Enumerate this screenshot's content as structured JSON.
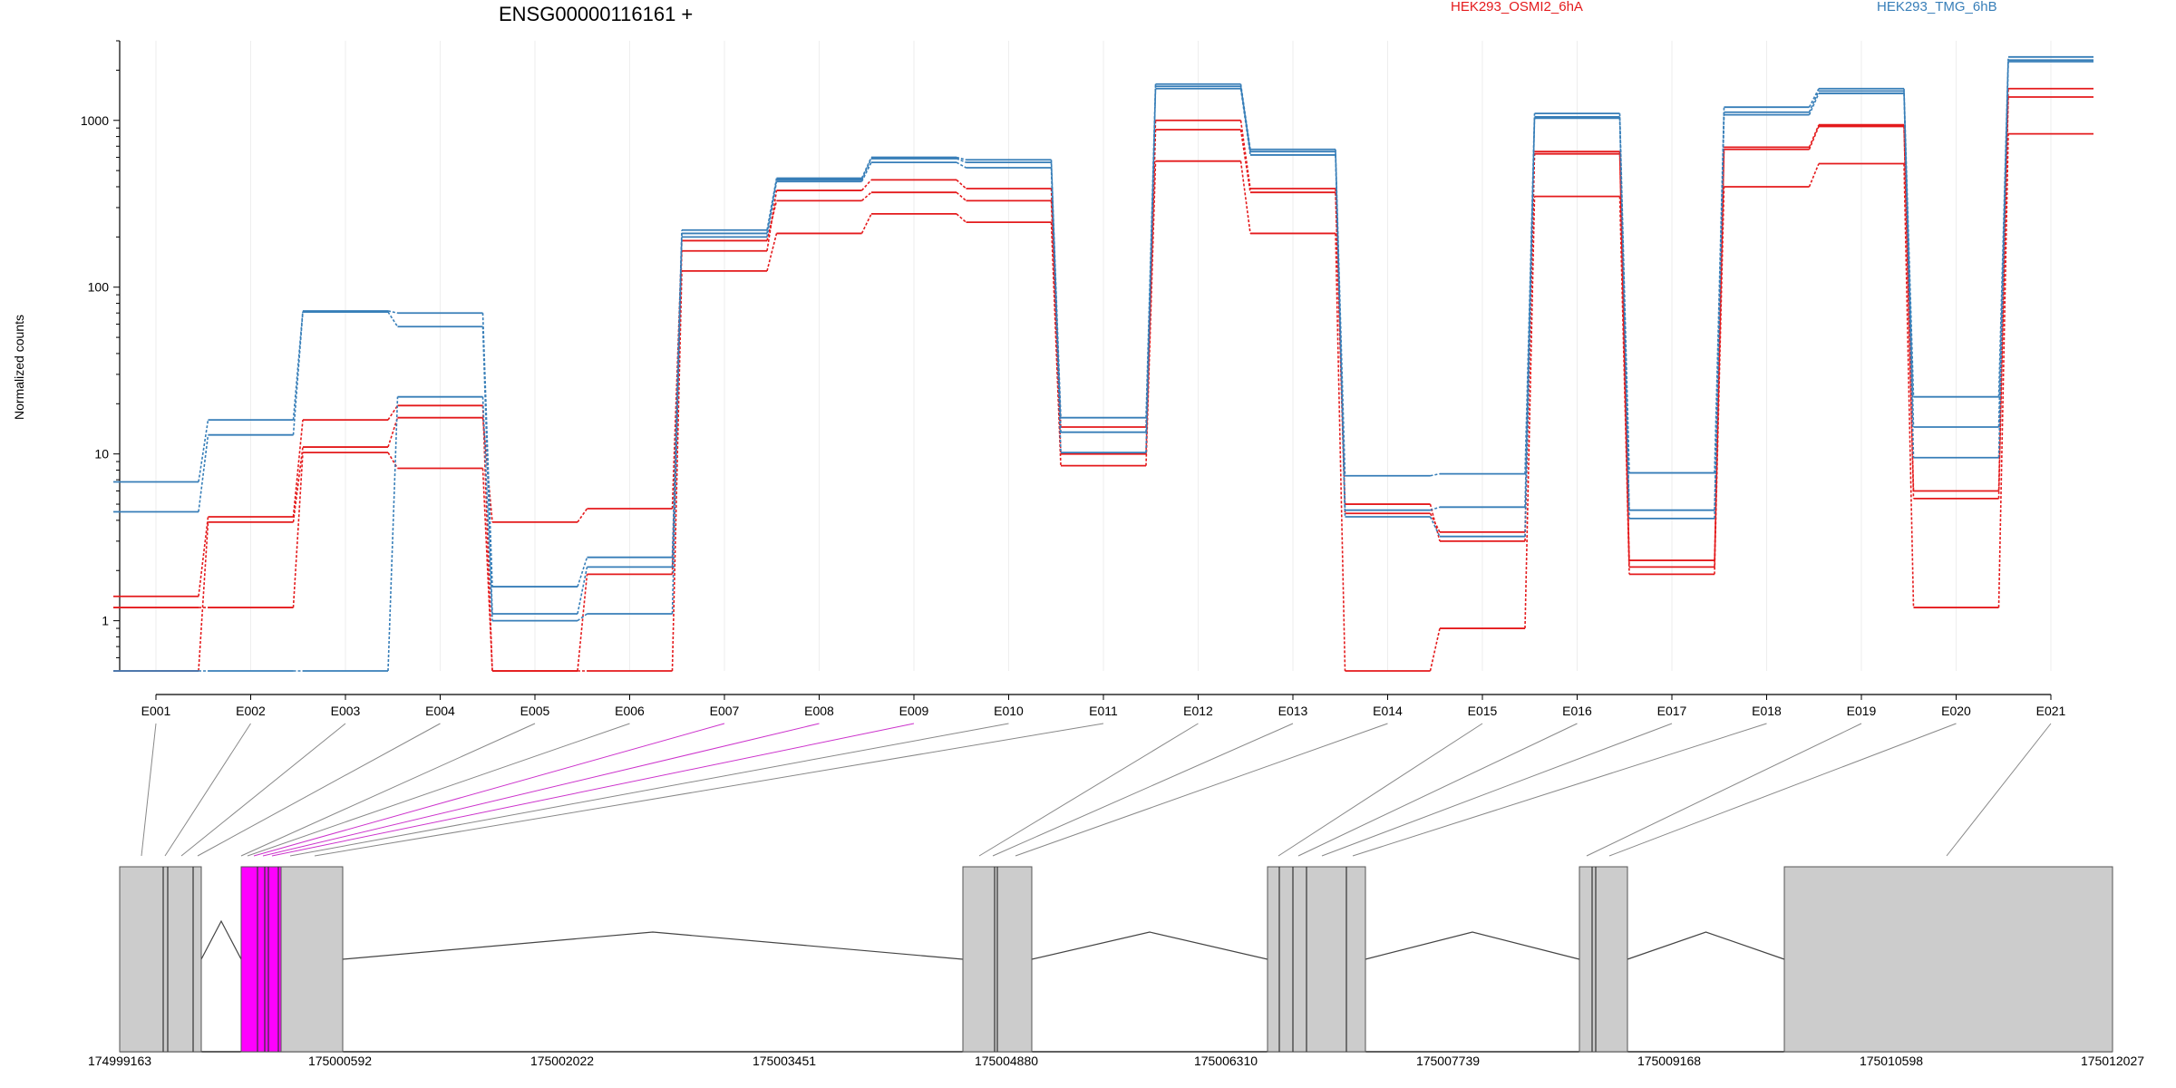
{
  "chart_data": {
    "type": "line",
    "title": "ENSG00000116161 +",
    "ylabel": "Normalized counts",
    "xlabel": "",
    "yscale": "log",
    "ylim": [
      0.5,
      3000
    ],
    "yticks": [
      1,
      10,
      100,
      1000
    ],
    "ytick_labels": [
      "1",
      "10",
      "100",
      "1000"
    ],
    "categories": [
      "E001",
      "E002",
      "E003",
      "E004",
      "E005",
      "E006",
      "E007",
      "E008",
      "E009",
      "E010",
      "E011",
      "E012",
      "E013",
      "E014",
      "E015",
      "E016",
      "E017",
      "E018",
      "E019",
      "E020",
      "E021"
    ],
    "colors": {
      "HEK293_OSMI2_6hA": "#e41a1c",
      "HEK293_TMG_6hB": "#377eb8",
      "highlight": "#ff00ff",
      "exon_fill": "#cccccc"
    },
    "legend": [
      {
        "name": "HEK293_OSMI2_6hA",
        "color": "#e41a1c"
      },
      {
        "name": "HEK293_TMG_6hB",
        "color": "#377eb8"
      }
    ],
    "series": [
      {
        "group": "HEK293_OSMI2_6hA",
        "values": [
          1.4,
          4.2,
          16.0,
          19.5,
          0.5,
          1.9,
          165,
          380,
          440,
          390,
          14.5,
          1000,
          390,
          5.0,
          3.0,
          650,
          2.3,
          690,
          940,
          6.0,
          1550
        ]
      },
      {
        "group": "HEK293_OSMI2_6hA",
        "values": [
          0.5,
          3.9,
          11.0,
          16.5,
          3.9,
          4.7,
          190,
          330,
          370,
          330,
          10.0,
          880,
          370,
          4.4,
          3.4,
          630,
          2.1,
          670,
          920,
          5.4,
          1380
        ]
      },
      {
        "group": "HEK293_OSMI2_6hA",
        "values": [
          1.2,
          1.2,
          10.2,
          8.2,
          0.5,
          0.5,
          125,
          210,
          275,
          245,
          8.5,
          570,
          210,
          0.5,
          0.9,
          350,
          1.9,
          400,
          550,
          1.2,
          830
        ]
      },
      {
        "group": "HEK293_TMG_6hB",
        "values": [
          6.8,
          16.0,
          72.0,
          70.0,
          1.6,
          2.4,
          220,
          450,
          600,
          580,
          16.5,
          1650,
          670,
          7.4,
          7.6,
          1100,
          7.7,
          1200,
          1550,
          22.0,
          2400
        ]
      },
      {
        "group": "HEK293_TMG_6hB",
        "values": [
          4.5,
          13.0,
          71.0,
          58.0,
          1.1,
          2.1,
          210,
          440,
          590,
          560,
          13.5,
          1600,
          650,
          4.6,
          4.8,
          1050,
          4.6,
          1120,
          1500,
          14.5,
          2300
        ]
      },
      {
        "group": "HEK293_TMG_6hB",
        "values": [
          0.5,
          0.5,
          0.5,
          22.0,
          1.0,
          1.1,
          200,
          430,
          560,
          520,
          10.2,
          1550,
          620,
          4.2,
          3.2,
          1030,
          4.1,
          1080,
          1450,
          9.5,
          2250
        ]
      }
    ],
    "gene_model": {
      "coordinate_ticks": [
        "174999163",
        "175000592",
        "175002022",
        "175003451",
        "175004880",
        "175006310",
        "175007739",
        "175009168",
        "175010598",
        "175012027"
      ],
      "genomic_range": [
        174999163,
        175012027
      ],
      "highlighted_exons": [
        "E007",
        "E008",
        "E009"
      ]
    }
  }
}
